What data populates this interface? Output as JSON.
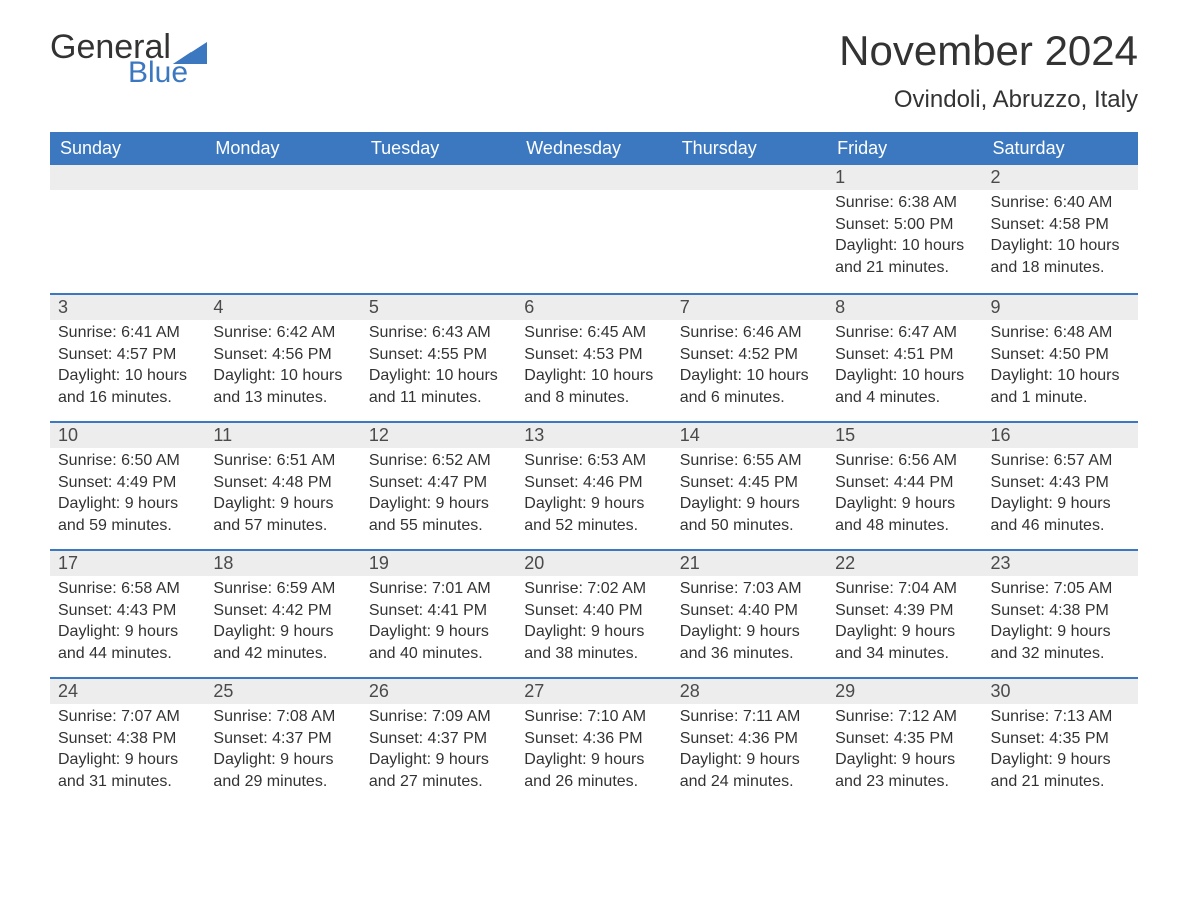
{
  "logo": {
    "word1": "General",
    "word2": "Blue",
    "text_color": "#333333",
    "accent_color": "#3b78c0"
  },
  "title": {
    "month": "November 2024",
    "location": "Ovindoli, Abruzzo, Italy",
    "month_fontsize": 42,
    "location_fontsize": 24,
    "text_color": "#333333"
  },
  "styling": {
    "header_bg": "#3b78c0",
    "header_text_color": "#ffffff",
    "daynum_bg": "#ededed",
    "row_border_color": "#3b78c0",
    "body_text_color": "#333333",
    "page_bg": "#ffffff",
    "header_fontsize": 18,
    "daynum_fontsize": 18,
    "body_fontsize": 16
  },
  "weekdays": [
    "Sunday",
    "Monday",
    "Tuesday",
    "Wednesday",
    "Thursday",
    "Friday",
    "Saturday"
  ],
  "weeks": [
    [
      null,
      null,
      null,
      null,
      null,
      {
        "n": "1",
        "sunrise": "6:38 AM",
        "sunset": "5:00 PM",
        "daylight": "10 hours and 21 minutes."
      },
      {
        "n": "2",
        "sunrise": "6:40 AM",
        "sunset": "4:58 PM",
        "daylight": "10 hours and 18 minutes."
      }
    ],
    [
      {
        "n": "3",
        "sunrise": "6:41 AM",
        "sunset": "4:57 PM",
        "daylight": "10 hours and 16 minutes."
      },
      {
        "n": "4",
        "sunrise": "6:42 AM",
        "sunset": "4:56 PM",
        "daylight": "10 hours and 13 minutes."
      },
      {
        "n": "5",
        "sunrise": "6:43 AM",
        "sunset": "4:55 PM",
        "daylight": "10 hours and 11 minutes."
      },
      {
        "n": "6",
        "sunrise": "6:45 AM",
        "sunset": "4:53 PM",
        "daylight": "10 hours and 8 minutes."
      },
      {
        "n": "7",
        "sunrise": "6:46 AM",
        "sunset": "4:52 PM",
        "daylight": "10 hours and 6 minutes."
      },
      {
        "n": "8",
        "sunrise": "6:47 AM",
        "sunset": "4:51 PM",
        "daylight": "10 hours and 4 minutes."
      },
      {
        "n": "9",
        "sunrise": "6:48 AM",
        "sunset": "4:50 PM",
        "daylight": "10 hours and 1 minute."
      }
    ],
    [
      {
        "n": "10",
        "sunrise": "6:50 AM",
        "sunset": "4:49 PM",
        "daylight": "9 hours and 59 minutes."
      },
      {
        "n": "11",
        "sunrise": "6:51 AM",
        "sunset": "4:48 PM",
        "daylight": "9 hours and 57 minutes."
      },
      {
        "n": "12",
        "sunrise": "6:52 AM",
        "sunset": "4:47 PM",
        "daylight": "9 hours and 55 minutes."
      },
      {
        "n": "13",
        "sunrise": "6:53 AM",
        "sunset": "4:46 PM",
        "daylight": "9 hours and 52 minutes."
      },
      {
        "n": "14",
        "sunrise": "6:55 AM",
        "sunset": "4:45 PM",
        "daylight": "9 hours and 50 minutes."
      },
      {
        "n": "15",
        "sunrise": "6:56 AM",
        "sunset": "4:44 PM",
        "daylight": "9 hours and 48 minutes."
      },
      {
        "n": "16",
        "sunrise": "6:57 AM",
        "sunset": "4:43 PM",
        "daylight": "9 hours and 46 minutes."
      }
    ],
    [
      {
        "n": "17",
        "sunrise": "6:58 AM",
        "sunset": "4:43 PM",
        "daylight": "9 hours and 44 minutes."
      },
      {
        "n": "18",
        "sunrise": "6:59 AM",
        "sunset": "4:42 PM",
        "daylight": "9 hours and 42 minutes."
      },
      {
        "n": "19",
        "sunrise": "7:01 AM",
        "sunset": "4:41 PM",
        "daylight": "9 hours and 40 minutes."
      },
      {
        "n": "20",
        "sunrise": "7:02 AM",
        "sunset": "4:40 PM",
        "daylight": "9 hours and 38 minutes."
      },
      {
        "n": "21",
        "sunrise": "7:03 AM",
        "sunset": "4:40 PM",
        "daylight": "9 hours and 36 minutes."
      },
      {
        "n": "22",
        "sunrise": "7:04 AM",
        "sunset": "4:39 PM",
        "daylight": "9 hours and 34 minutes."
      },
      {
        "n": "23",
        "sunrise": "7:05 AM",
        "sunset": "4:38 PM",
        "daylight": "9 hours and 32 minutes."
      }
    ],
    [
      {
        "n": "24",
        "sunrise": "7:07 AM",
        "sunset": "4:38 PM",
        "daylight": "9 hours and 31 minutes."
      },
      {
        "n": "25",
        "sunrise": "7:08 AM",
        "sunset": "4:37 PM",
        "daylight": "9 hours and 29 minutes."
      },
      {
        "n": "26",
        "sunrise": "7:09 AM",
        "sunset": "4:37 PM",
        "daylight": "9 hours and 27 minutes."
      },
      {
        "n": "27",
        "sunrise": "7:10 AM",
        "sunset": "4:36 PM",
        "daylight": "9 hours and 26 minutes."
      },
      {
        "n": "28",
        "sunrise": "7:11 AM",
        "sunset": "4:36 PM",
        "daylight": "9 hours and 24 minutes."
      },
      {
        "n": "29",
        "sunrise": "7:12 AM",
        "sunset": "4:35 PM",
        "daylight": "9 hours and 23 minutes."
      },
      {
        "n": "30",
        "sunrise": "7:13 AM",
        "sunset": "4:35 PM",
        "daylight": "9 hours and 21 minutes."
      }
    ]
  ],
  "labels": {
    "sunrise_prefix": "Sunrise: ",
    "sunset_prefix": "Sunset: ",
    "daylight_prefix": "Daylight: "
  }
}
